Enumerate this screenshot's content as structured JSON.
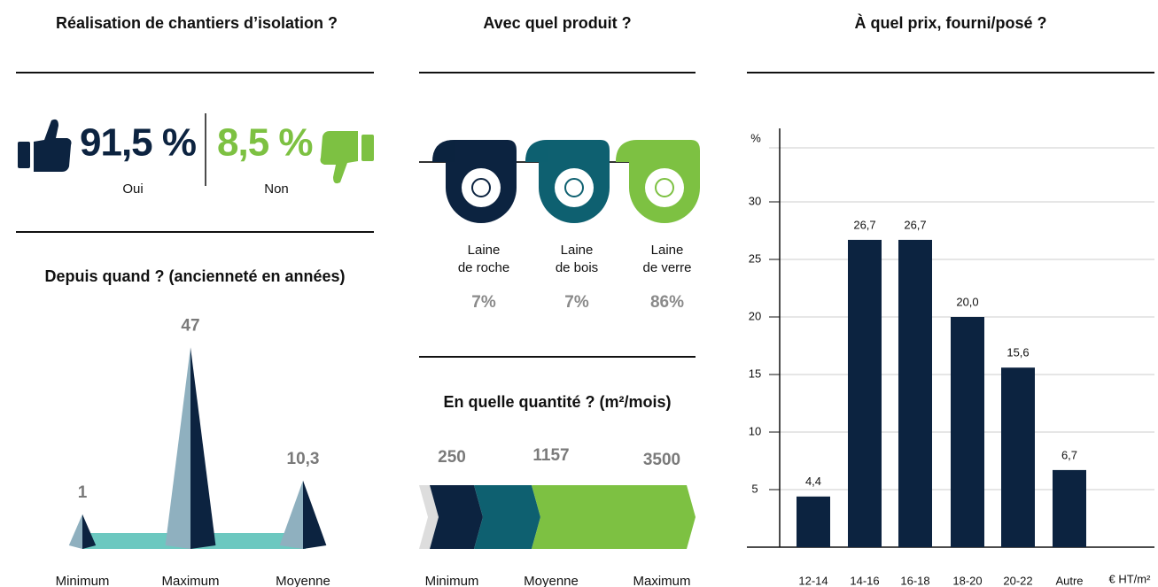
{
  "survey": {
    "title": "Réalisation de chantiers d’isolation ?",
    "yes": {
      "share": "91,5 %",
      "label": "Oui"
    },
    "no": {
      "share": "8,5 %",
      "label": "Non"
    }
  },
  "products": {
    "title": "Avec quel produit ?",
    "items": [
      {
        "lines": [
          "Laine",
          "de roche"
        ],
        "share": "7%",
        "color": "#0c2340"
      },
      {
        "lines": [
          "Laine",
          "de bois"
        ],
        "share": "7%",
        "color": "#0e6070"
      },
      {
        "lines": [
          "Laine",
          "de verre"
        ],
        "share": "86%",
        "color": "#7dc142"
      }
    ]
  },
  "chart_data": [
    {
      "type": "pyramid",
      "title": "Depuis quand ? (ancienneté en années)",
      "categories": [
        "Minimum",
        "Maximum",
        "Moyenne"
      ],
      "values": [
        1,
        47,
        10.3
      ],
      "value_labels": [
        "1",
        "47",
        "10,3"
      ],
      "color": "#0c2340"
    },
    {
      "type": "arrow",
      "title": "En quelle quantité ? (m²/mois)",
      "categories": [
        "Minimum",
        "Moyenne",
        "Maximum"
      ],
      "values": [
        250,
        1157,
        3500
      ],
      "colors": [
        "#0c2340",
        "#0e6070",
        "#7dc142"
      ]
    },
    {
      "type": "bar",
      "title": "À quel prix, fourni/posé ?",
      "y_label": "%",
      "x_label": "€ HT/m²",
      "categories": [
        "12-14",
        "14-16",
        "16-18",
        "18-20",
        "20-22",
        "Autre"
      ],
      "values": [
        4.4,
        26.7,
        26.7,
        20.0,
        15.6,
        6.7
      ],
      "value_labels": [
        "4,4",
        "26,7",
        "26,7",
        "20,0",
        "15,6",
        "6,7"
      ],
      "color": "#0c2340",
      "ylim": [
        0,
        35
      ],
      "yticks": [
        5,
        10,
        15,
        20,
        25,
        30
      ],
      "grid": true
    }
  ]
}
